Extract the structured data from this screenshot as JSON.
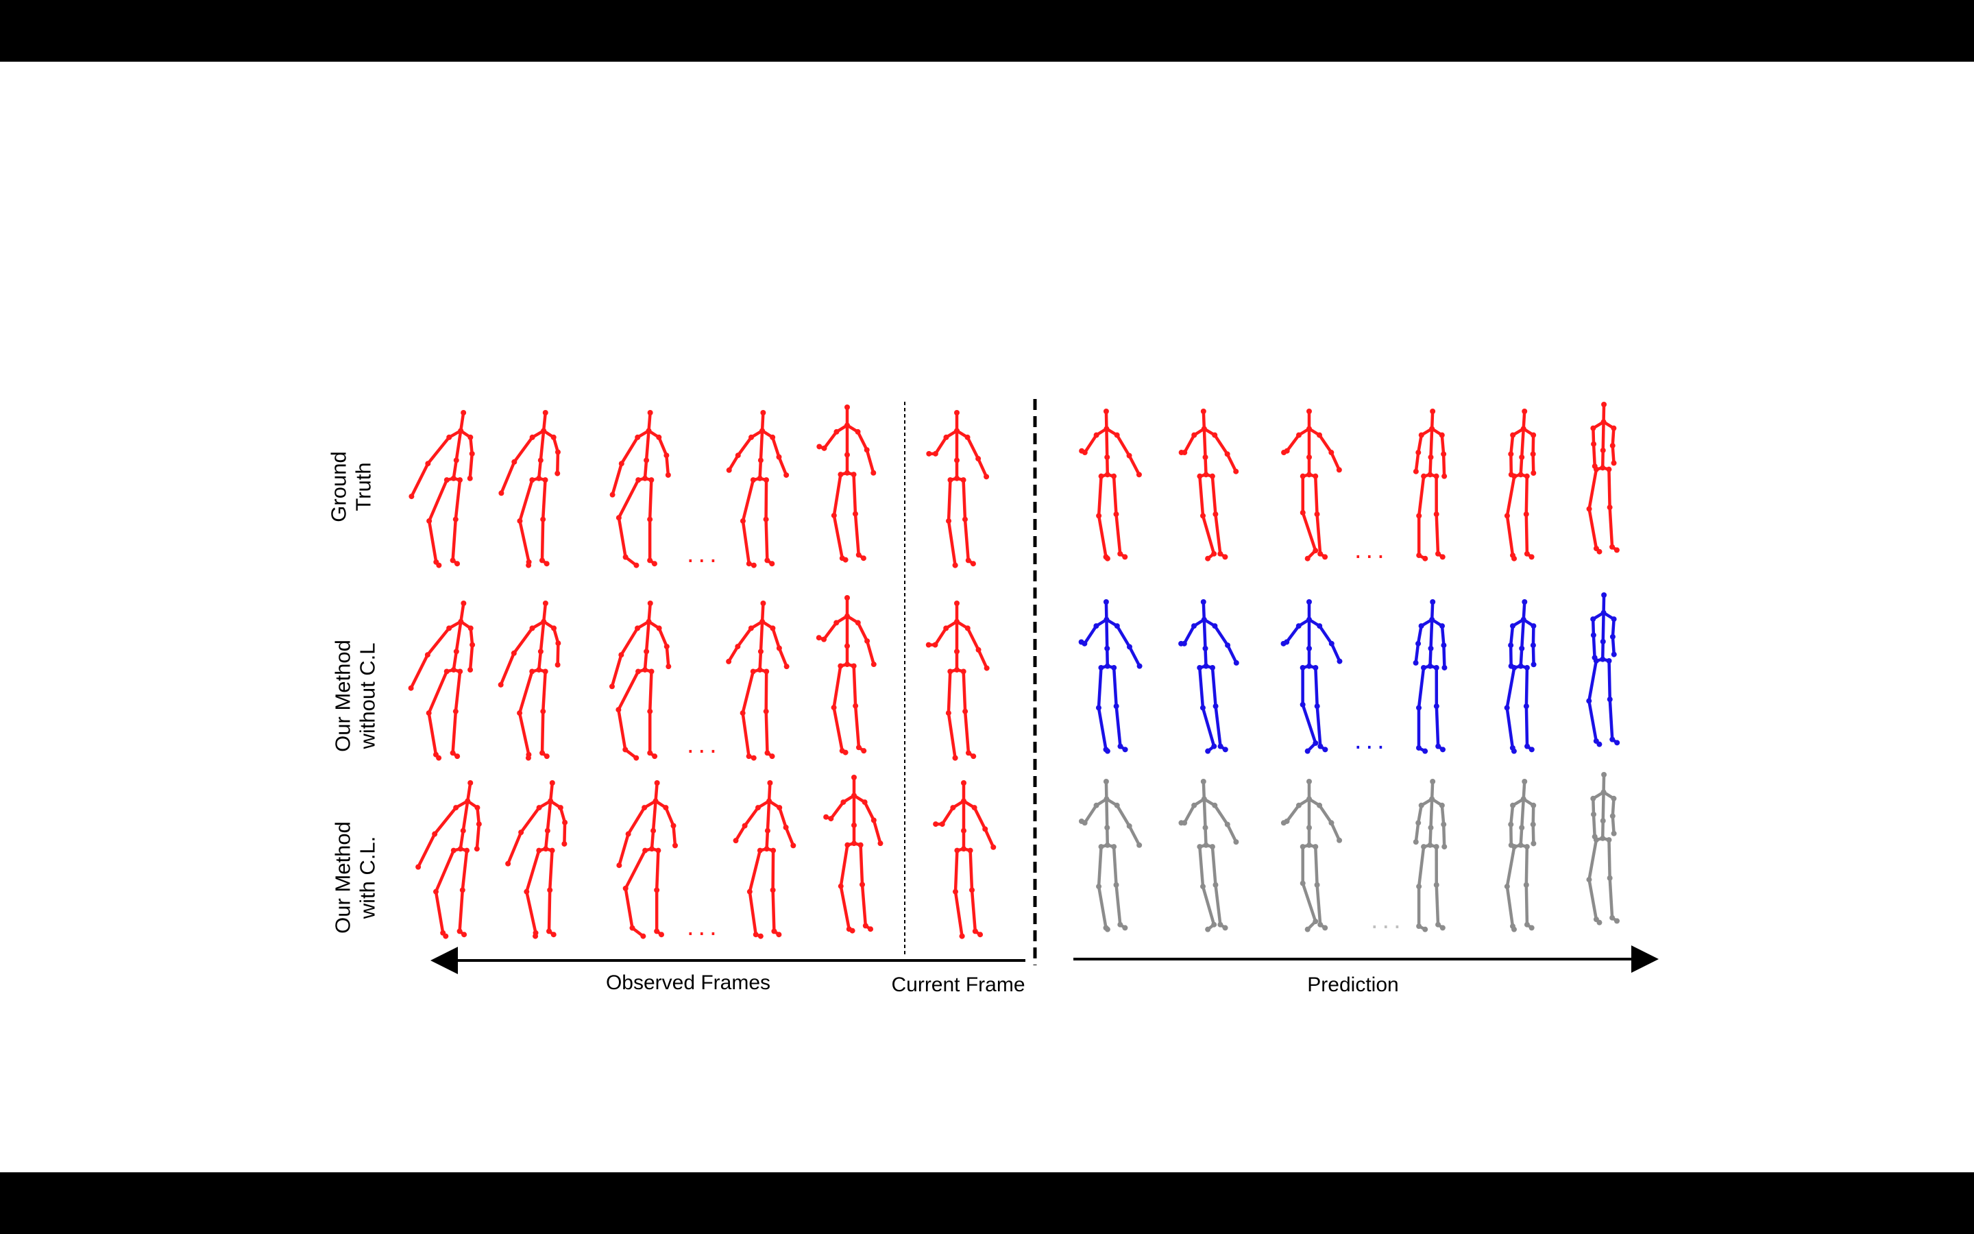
{
  "colors": {
    "background": "#ffffff",
    "letterbox": "#000000",
    "observed": "#ff1a1a",
    "ground_truth": "#ff1a1a",
    "without_cl": "#1a10e6",
    "with_cl": "#8c8c8c"
  },
  "rows": [
    {
      "label_line1": "Ground",
      "label_line2": "Truth",
      "prediction_color": "ground_truth"
    },
    {
      "label_line1": "Our Method",
      "label_line2": "without C.L",
      "prediction_color": "without_cl"
    },
    {
      "label_line1": "Our Method",
      "label_line2": "with C.L.",
      "prediction_color": "with_cl"
    }
  ],
  "axis": {
    "observed_label": "Observed Frames",
    "current_label": "Current  Frame",
    "prediction_label": "Prediction"
  },
  "ellipsis": "..."
}
